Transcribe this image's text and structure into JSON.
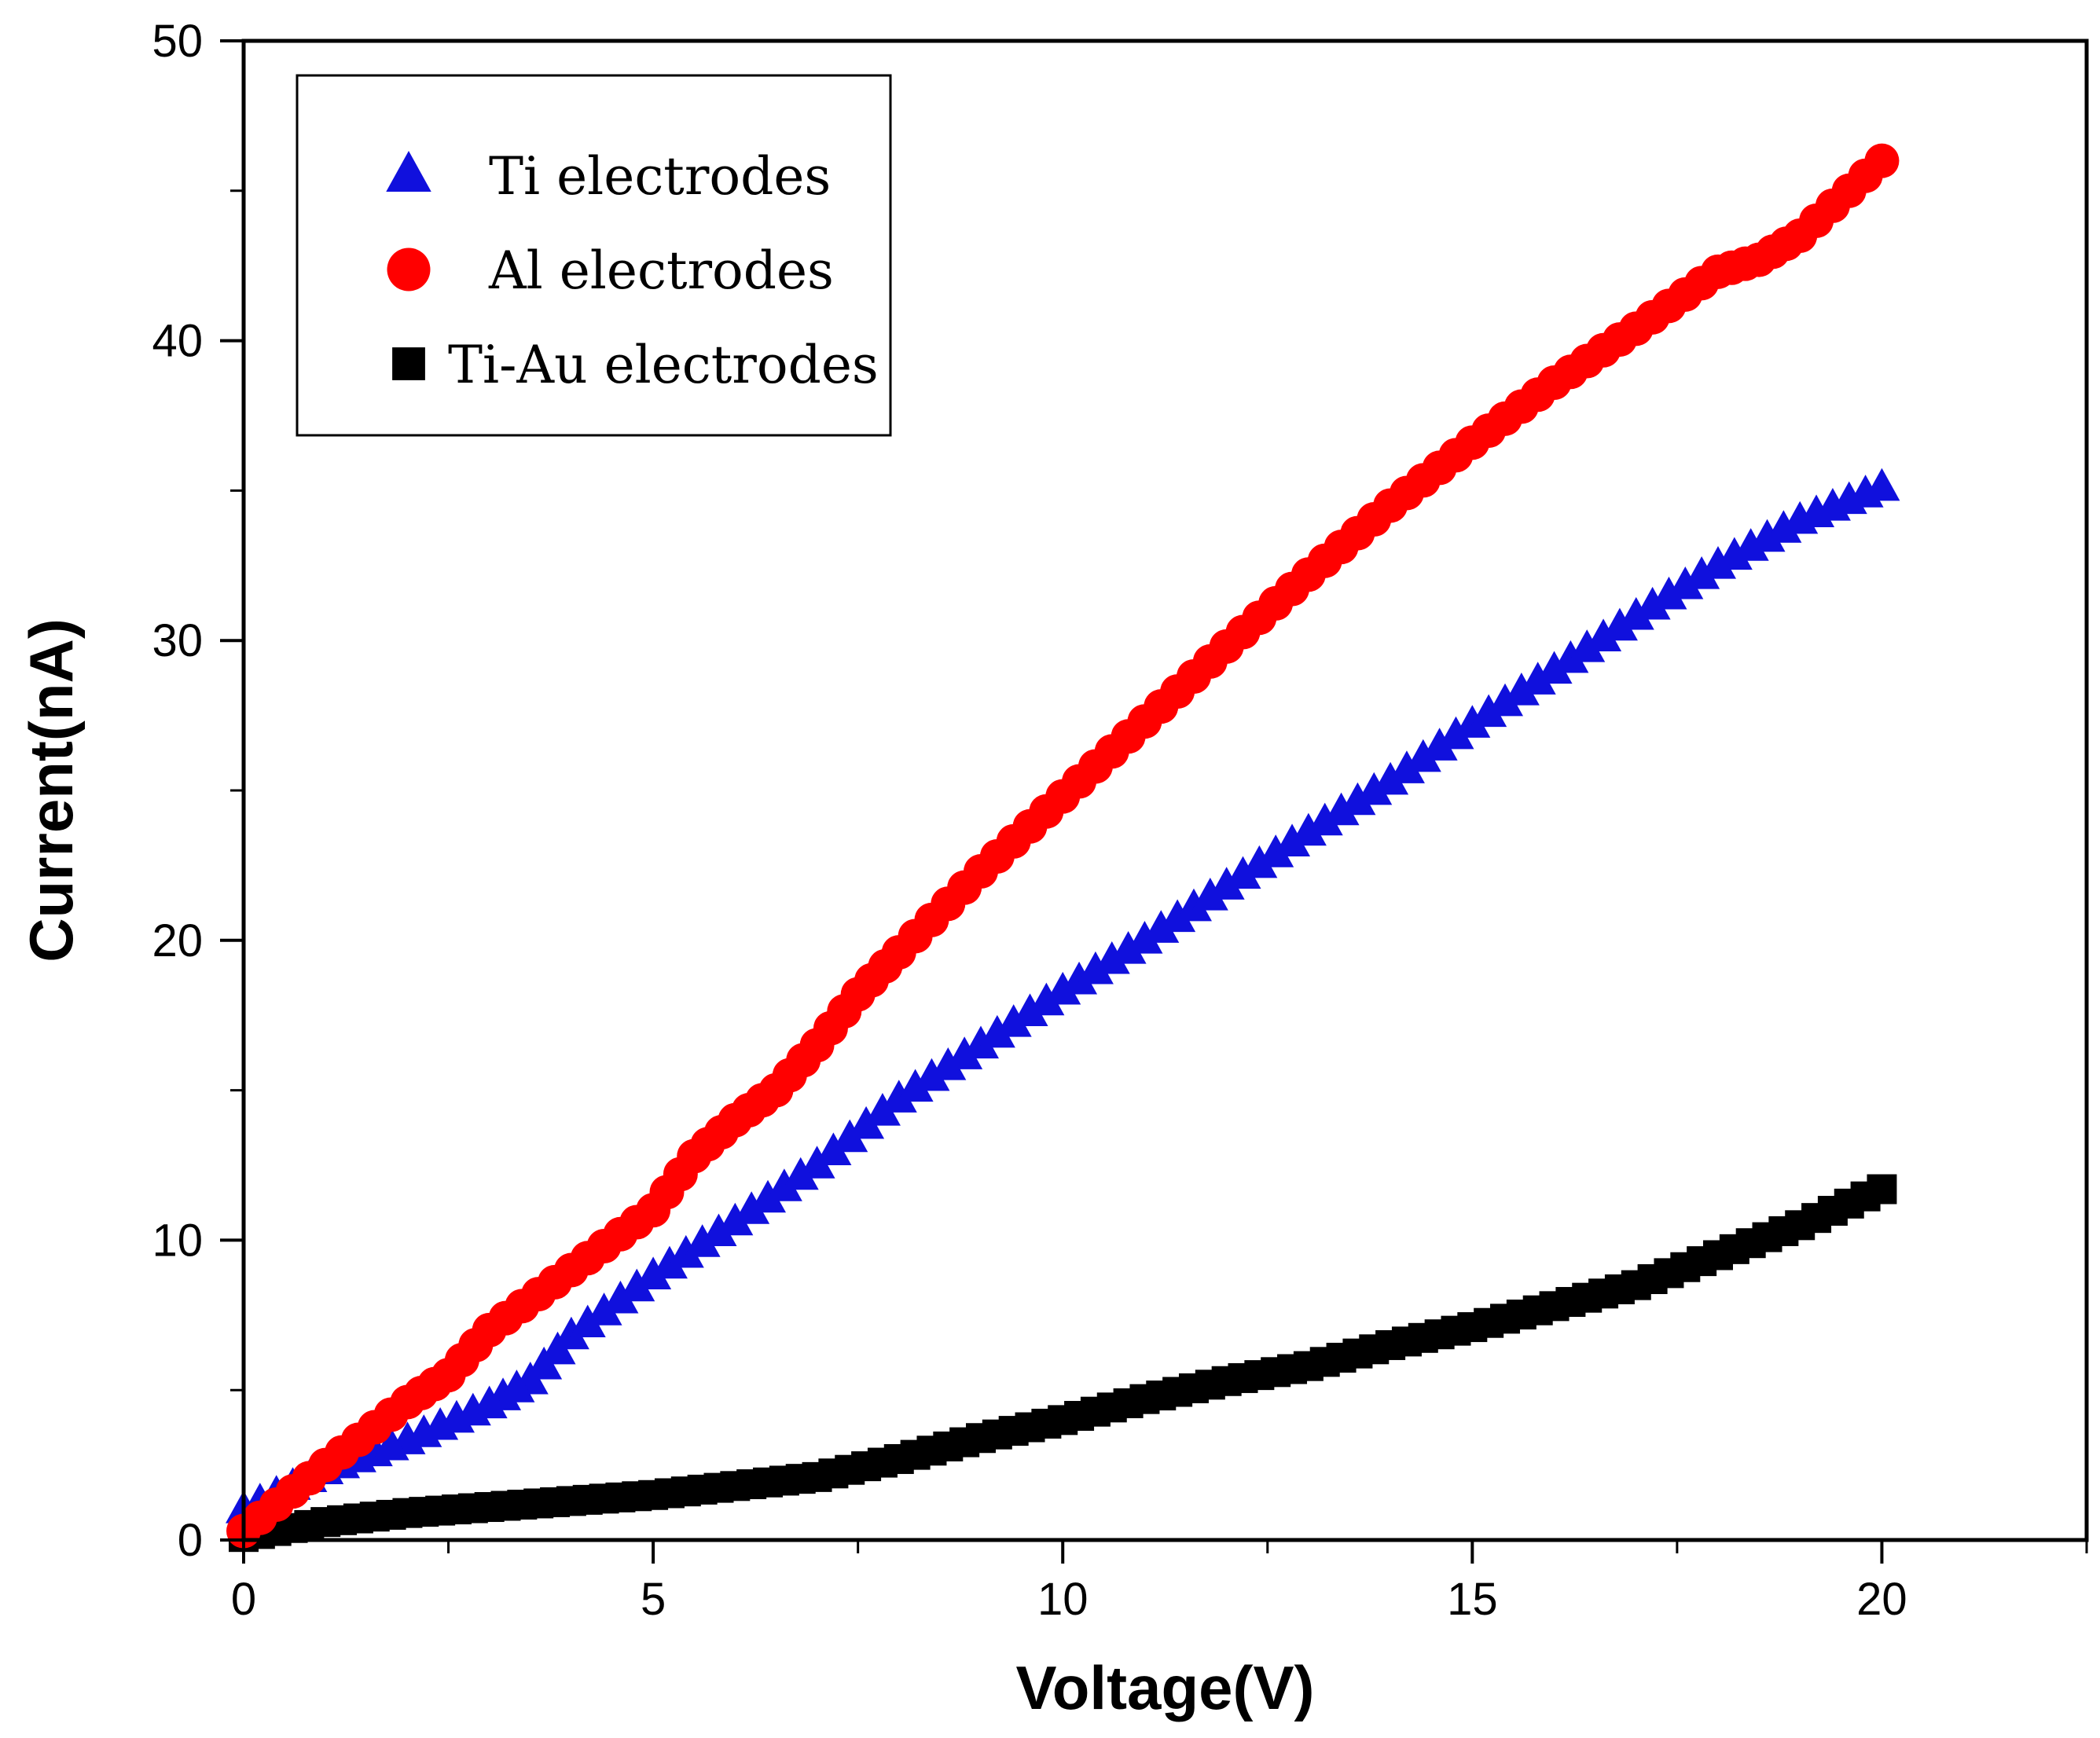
{
  "chart_data": {
    "type": "scatter",
    "title": "",
    "xlabel": "Voltage(V)",
    "ylabel": "Current(nA)",
    "xlim": [
      0,
      22.5
    ],
    "ylim": [
      0,
      50
    ],
    "xticks": [
      0,
      5,
      10,
      15,
      20
    ],
    "yticks": [
      0,
      10,
      20,
      30,
      40,
      50
    ],
    "x_minor_step": 2.5,
    "y_minor_step": 5,
    "grid": false,
    "legend_position": "top-left",
    "series": [
      {
        "name": "Ti electrodes",
        "marker": "triangle",
        "color": "#1010dd",
        "points": [
          [
            0,
            1.0
          ],
          [
            1,
            2.3
          ],
          [
            2,
            3.3
          ],
          [
            3,
            4.5
          ],
          [
            3.5,
            5.3
          ],
          [
            4,
            6.8
          ],
          [
            5,
            8.8
          ],
          [
            6,
            10.6
          ],
          [
            7,
            12.5
          ],
          [
            8,
            14.7
          ],
          [
            9,
            16.5
          ],
          [
            10,
            18.3
          ],
          [
            11,
            20.0
          ],
          [
            12,
            21.8
          ],
          [
            13,
            23.6
          ],
          [
            14,
            25.3
          ],
          [
            15,
            27.2
          ],
          [
            16,
            29.0
          ],
          [
            17,
            30.8
          ],
          [
            18,
            32.5
          ],
          [
            19,
            34.0
          ],
          [
            20,
            35.1
          ]
        ]
      },
      {
        "name": "Al electrodes",
        "marker": "circle",
        "color": "#ff0000",
        "points": [
          [
            0,
            0.3
          ],
          [
            1,
            2.5
          ],
          [
            2,
            4.6
          ],
          [
            2.5,
            5.5
          ],
          [
            3,
            7.0
          ],
          [
            4,
            9.0
          ],
          [
            5,
            11.0
          ],
          [
            5.5,
            12.8
          ],
          [
            6,
            14.0
          ],
          [
            6.5,
            15.0
          ],
          [
            7,
            16.5
          ],
          [
            7.5,
            18.2
          ],
          [
            8,
            19.6
          ],
          [
            9,
            22.3
          ],
          [
            10,
            24.8
          ],
          [
            11,
            27.3
          ],
          [
            12,
            29.8
          ],
          [
            13,
            32.2
          ],
          [
            14,
            34.5
          ],
          [
            15,
            36.6
          ],
          [
            16,
            38.6
          ],
          [
            17,
            40.4
          ],
          [
            18,
            42.3
          ],
          [
            18.5,
            42.7
          ],
          [
            19,
            43.5
          ],
          [
            20,
            46.0
          ]
        ]
      },
      {
        "name": "Ti-Au electrodes",
        "marker": "square",
        "color": "#000000",
        "points": [
          [
            0,
            0.1
          ],
          [
            1,
            0.6
          ],
          [
            2,
            0.9
          ],
          [
            3,
            1.1
          ],
          [
            4,
            1.3
          ],
          [
            5,
            1.5
          ],
          [
            6,
            1.8
          ],
          [
            7,
            2.1
          ],
          [
            8,
            2.7
          ],
          [
            9,
            3.4
          ],
          [
            10,
            4.0
          ],
          [
            11,
            4.7
          ],
          [
            12,
            5.3
          ],
          [
            13,
            5.8
          ],
          [
            14,
            6.5
          ],
          [
            15,
            7.1
          ],
          [
            16,
            7.8
          ],
          [
            17,
            8.5
          ],
          [
            18,
            9.5
          ],
          [
            19,
            10.5
          ],
          [
            20,
            11.7
          ]
        ]
      }
    ]
  }
}
